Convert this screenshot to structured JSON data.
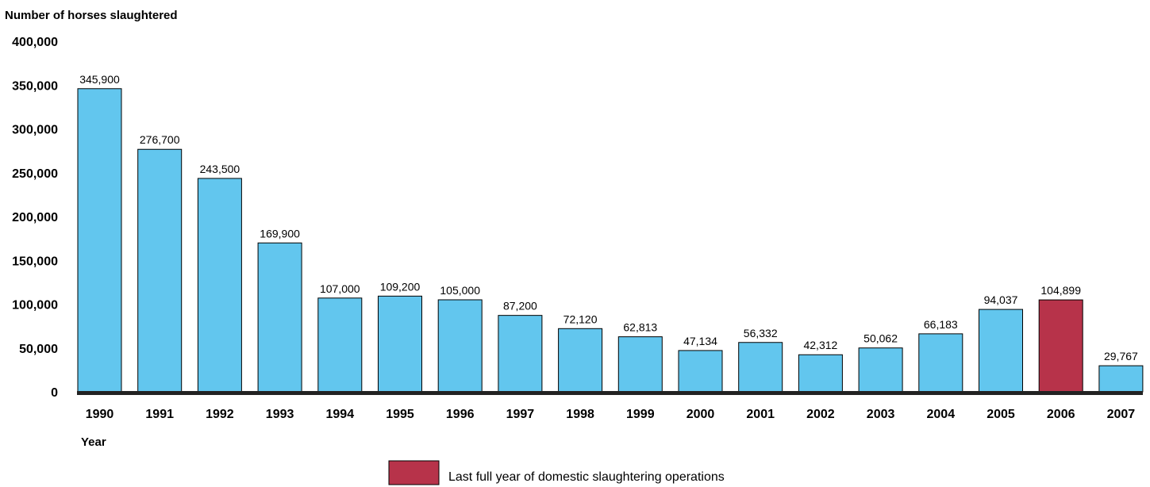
{
  "chart_data": {
    "type": "bar",
    "ylabel": "Number of horses slaughtered",
    "xlabel": "Year",
    "ylim": [
      0,
      400000
    ],
    "yticks": [
      "0",
      "50,000",
      "100,000",
      "150,000",
      "200,000",
      "250,000",
      "300,000",
      "350,000",
      "400,000"
    ],
    "categories": [
      "1990",
      "1991",
      "1992",
      "1993",
      "1994",
      "1995",
      "1996",
      "1997",
      "1998",
      "1999",
      "2000",
      "2001",
      "2002",
      "2003",
      "2004",
      "2005",
      "2006",
      "2007"
    ],
    "values": [
      345900,
      276700,
      243500,
      169900,
      107000,
      109200,
      105000,
      87200,
      72120,
      62813,
      47134,
      56332,
      42312,
      50062,
      66183,
      94037,
      104899,
      29767
    ],
    "value_labels": [
      "345,900",
      "276,700",
      "243,500",
      "169,900",
      "107,000",
      "109,200",
      "105,000",
      "87,200",
      "72,120",
      "62,813",
      "47,134",
      "56,332",
      "42,312",
      "50,062",
      "66,183",
      "94,037",
      "104,899",
      "29,767"
    ],
    "highlight_category": "2006",
    "colors": {
      "bar": "#62c6ee",
      "highlight": "#b7334a",
      "baseline": "#222222"
    },
    "legend": {
      "label": "Last full year of domestic slaughtering operations",
      "placement": "bottom-center"
    },
    "grid": false
  }
}
